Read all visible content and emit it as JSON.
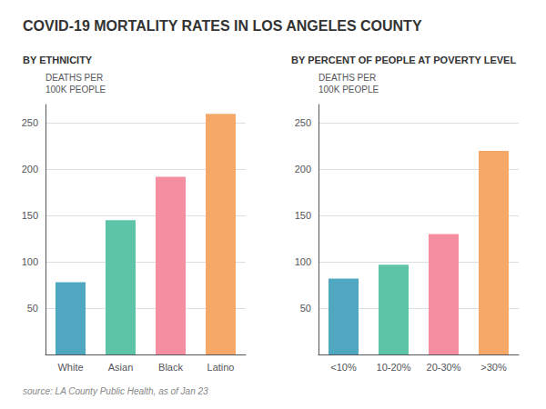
{
  "title": "COVID-19 MORTALITY RATES IN LOS ANGELES COUNTY",
  "annotations": [
    "source: LA County Public Health, as of Jan 23"
  ],
  "chart_data": [
    {
      "type": "bar",
      "title": "BY ETHNICITY",
      "ylabel": "DEATHS PER\n100K PEOPLE",
      "categories": [
        "White",
        "Asian",
        "Black",
        "Latino"
      ],
      "values": [
        78,
        145,
        192,
        260
      ],
      "colors": [
        "#4fa8c0",
        "#5ec4a8",
        "#f58ea0",
        "#f5a868"
      ],
      "ylim": [
        0,
        270
      ],
      "yticks": [
        50,
        100,
        150,
        200,
        250
      ],
      "grid": true
    },
    {
      "type": "bar",
      "title": "BY PERCENT OF PEOPLE AT POVERTY LEVEL",
      "ylabel": "DEATHS PER\n100K PEOPLE",
      "categories": [
        "<10%",
        "10-20%",
        "20-30%",
        ">30%"
      ],
      "values": [
        82,
        97,
        130,
        220
      ],
      "colors": [
        "#4fa8c0",
        "#5ec4a8",
        "#f58ea0",
        "#f5a868"
      ],
      "ylim": [
        0,
        270
      ],
      "yticks": [
        50,
        100,
        150,
        200,
        250
      ],
      "grid": true
    }
  ]
}
